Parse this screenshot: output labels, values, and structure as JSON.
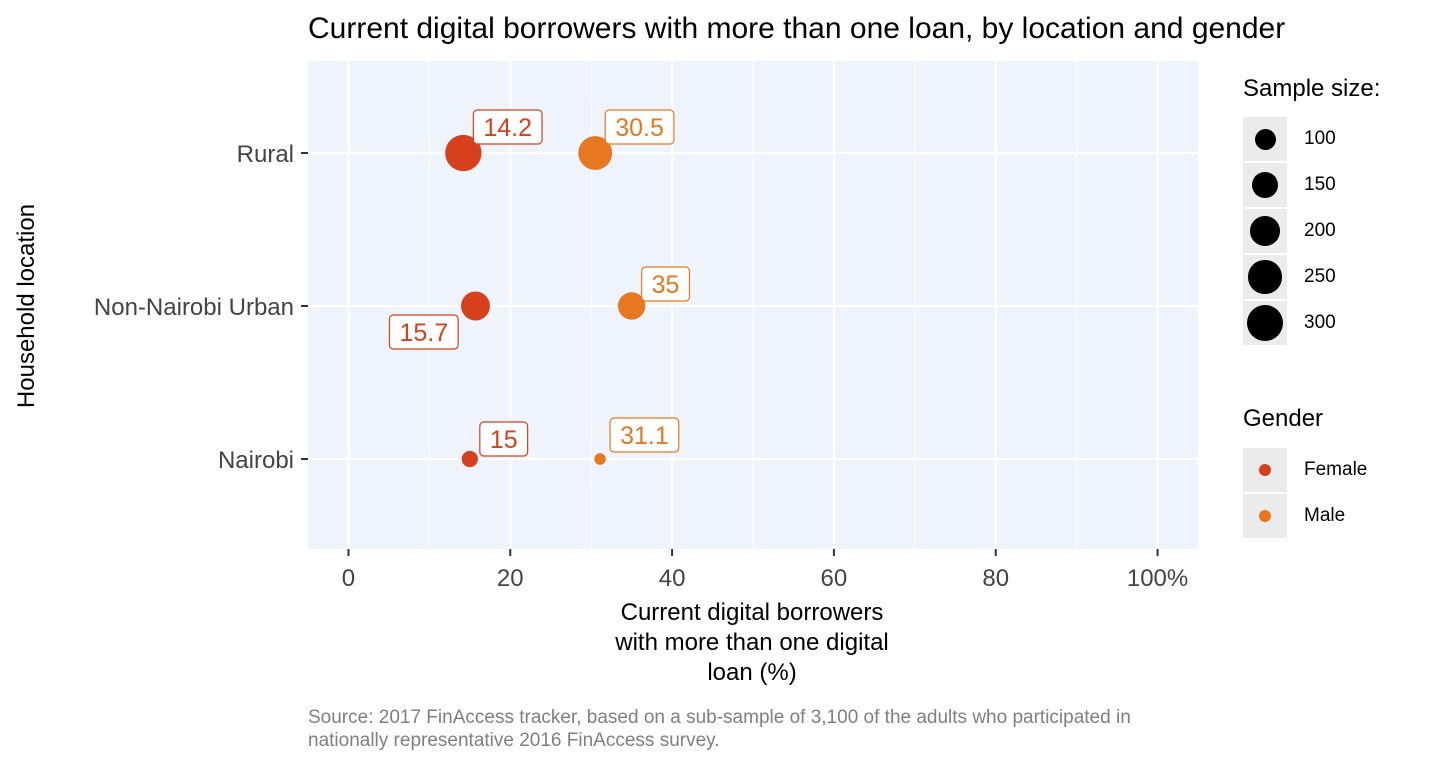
{
  "chart_data": {
    "type": "scatter",
    "title": "Current digital borrowers with more than one loan, by location and gender",
    "xlabel": "Current digital borrowers with more than one digital loan (%)",
    "xlabel_lines": [
      "Current digital borrowers",
      "with more than one digital",
      "loan (%)"
    ],
    "ylabel": "Household location",
    "xlim": [
      -5,
      105
    ],
    "x_ticks": [
      0,
      20,
      40,
      60,
      80,
      100
    ],
    "x_tick_labels": [
      "0",
      "20",
      "40",
      "60",
      "80",
      "100%"
    ],
    "categories": [
      "Rural",
      "Non-Nairobi Urban",
      "Nairobi"
    ],
    "grid": true,
    "series": [
      {
        "name": "Female",
        "color": "#d7401c",
        "points": [
          {
            "location": "Rural",
            "x": 14.2,
            "label": "14.2",
            "sample_size": 300
          },
          {
            "location": "Non-Nairobi Urban",
            "x": 15.7,
            "label": "15.7",
            "sample_size": 190
          },
          {
            "location": "Nairobi",
            "x": 15,
            "label": "15",
            "sample_size": 60
          }
        ]
      },
      {
        "name": "Male",
        "color": "#e87722",
        "points": [
          {
            "location": "Rural",
            "x": 30.5,
            "label": "30.5",
            "sample_size": 260
          },
          {
            "location": "Non-Nairobi Urban",
            "x": 35,
            "label": "35",
            "sample_size": 170
          },
          {
            "location": "Nairobi",
            "x": 31.1,
            "label": "31.1",
            "sample_size": 30
          }
        ]
      }
    ],
    "legend": {
      "placement": "right",
      "size_title": "Sample size:",
      "size_entries": [
        "100",
        "150",
        "200",
        "250",
        "300"
      ],
      "color_title": "Gender",
      "color_entries": [
        "Female",
        "Male"
      ]
    },
    "caption": "Source: 2017 FinAccess tracker, based on a sub-sample of 3,100 of the adults who participated in nationally representative 2016 FinAccess survey."
  }
}
